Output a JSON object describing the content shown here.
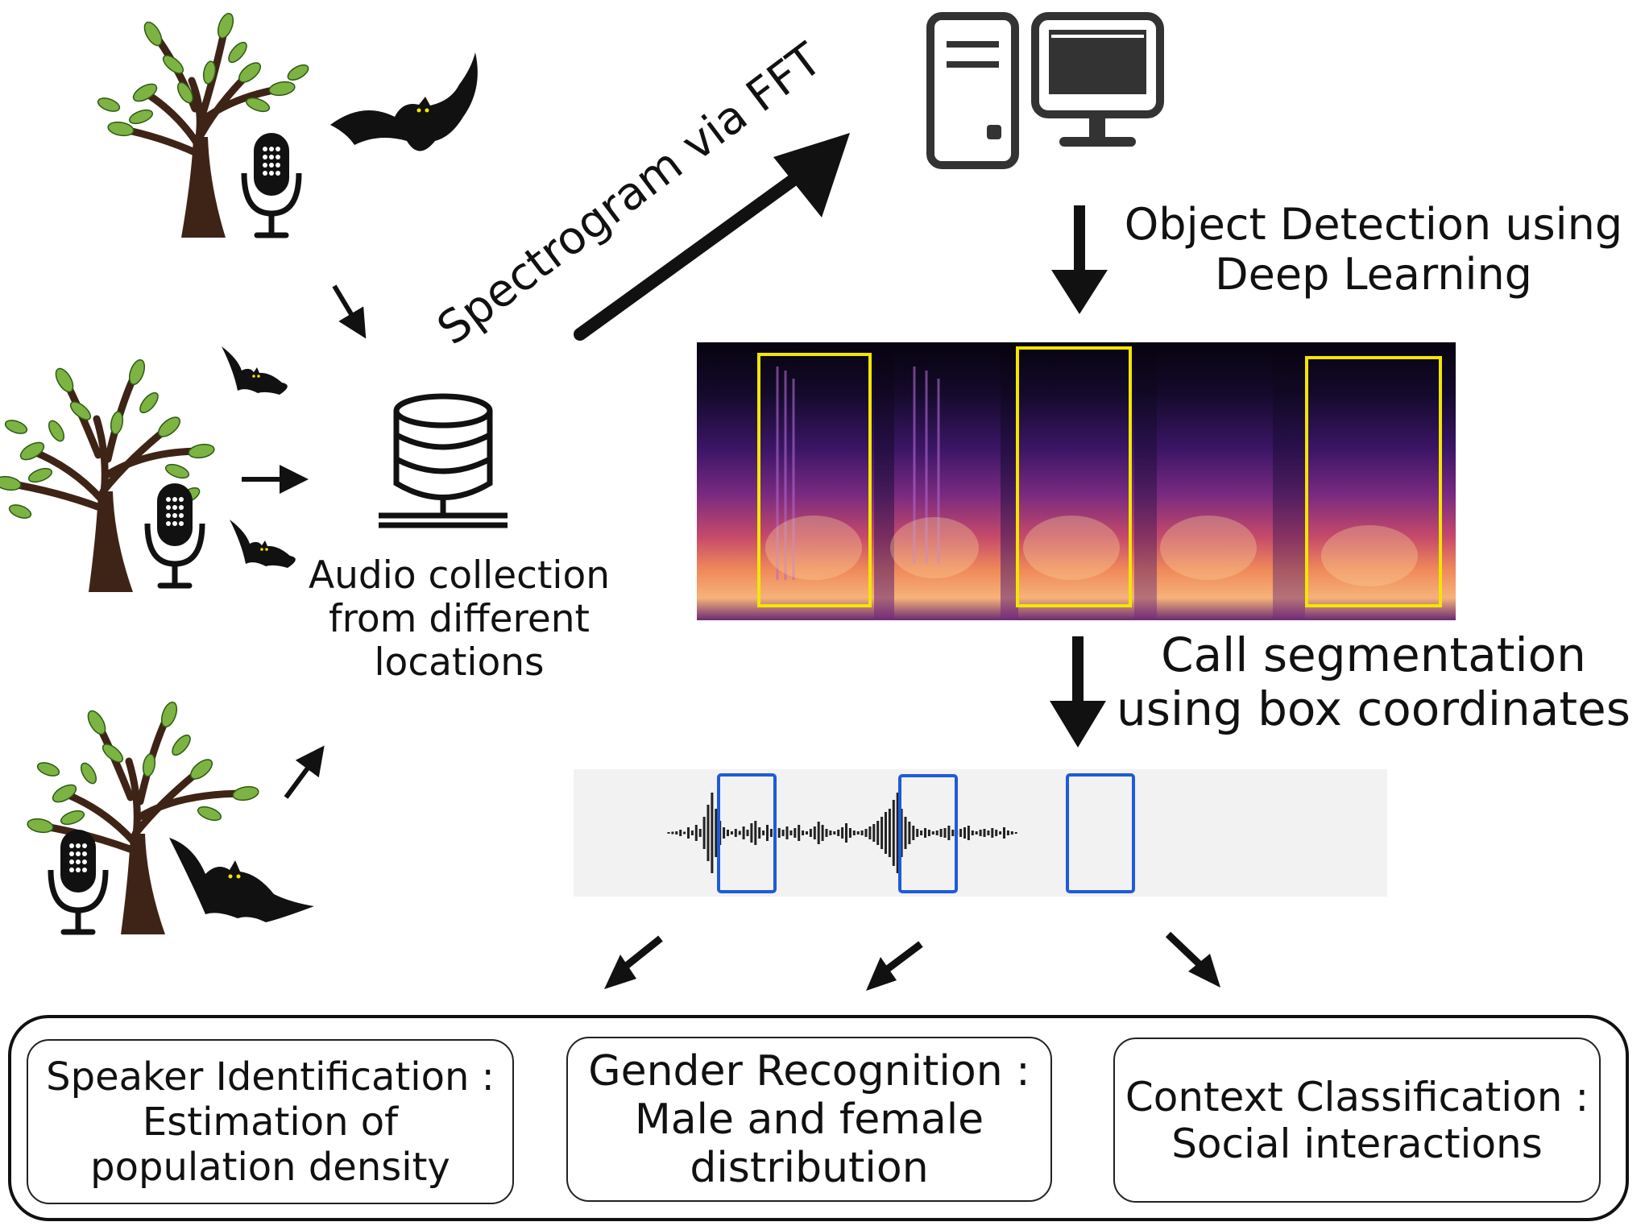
{
  "labels": {
    "fft": "Spectrogram via FFT",
    "collection": [
      "Audio collection",
      "from different",
      "locations"
    ],
    "detection": [
      "Object Detection using",
      "Deep Learning"
    ],
    "segmentation": [
      "Call segmentation",
      "using box coordinates"
    ]
  },
  "tasks": [
    {
      "lines": [
        "Speaker Identification :",
        "Estimation of",
        "population density"
      ]
    },
    {
      "lines": [
        "Gender Recognition :",
        "Male and female",
        "distribution"
      ]
    },
    {
      "lines": [
        "Context Classification :",
        "Social interactions"
      ]
    }
  ],
  "colors": {
    "ink": "#111111",
    "leaf": "#7cb342",
    "trunk": "#3e2417",
    "detection_box": "#f2e600",
    "segment_box": "#1e5bd8",
    "waveform_bg": "#f2f2f2"
  },
  "icons": [
    "tree-icon",
    "bat-icon",
    "microphone-icon",
    "database-icon",
    "computer-tower-icon",
    "monitor-icon",
    "spectrogram-image",
    "waveform-image"
  ]
}
